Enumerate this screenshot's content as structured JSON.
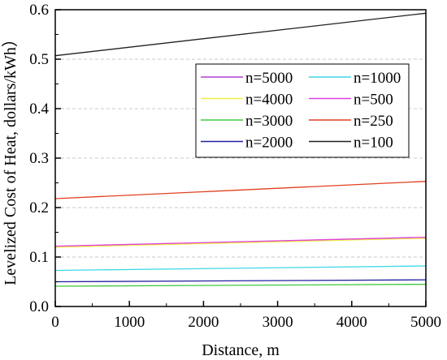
{
  "chart_data": {
    "type": "line",
    "title": "",
    "xlabel": "Distance, m",
    "ylabel": "Levelized Cost of Heat, dollars/kWh）",
    "xlim": [
      0,
      5000
    ],
    "ylim": [
      0.0,
      0.6
    ],
    "xticks": [
      "0",
      "1000",
      "2000",
      "3000",
      "4000",
      "5000"
    ],
    "yticks": [
      "0.0",
      "0.1",
      "0.2",
      "0.3",
      "0.4",
      "0.5",
      "0.6"
    ],
    "grid": "horizontal dashed",
    "legend_placement": "right, upper-middle",
    "x": [
      0,
      5000
    ],
    "series": [
      {
        "name": "n=5000",
        "color": "#b040d0",
        "values": [
          0.121,
          0.139
        ]
      },
      {
        "name": "n=1000",
        "color": "#40d8e8",
        "values": [
          0.073,
          0.082
        ]
      },
      {
        "name": "n=4000",
        "color": "#f0f040",
        "values": [
          0.12,
          0.138
        ]
      },
      {
        "name": "n=500",
        "color": "#e040e0",
        "values": [
          0.122,
          0.14
        ]
      },
      {
        "name": "n=3000",
        "color": "#40c840",
        "values": [
          0.041,
          0.045
        ]
      },
      {
        "name": "n=250",
        "color": "#e04020",
        "values": [
          0.218,
          0.253
        ]
      },
      {
        "name": "n=2000",
        "color": "#2020a0",
        "values": [
          0.05,
          0.054
        ]
      },
      {
        "name": "n=100",
        "color": "#202020",
        "values": [
          0.507,
          0.593
        ]
      }
    ]
  }
}
